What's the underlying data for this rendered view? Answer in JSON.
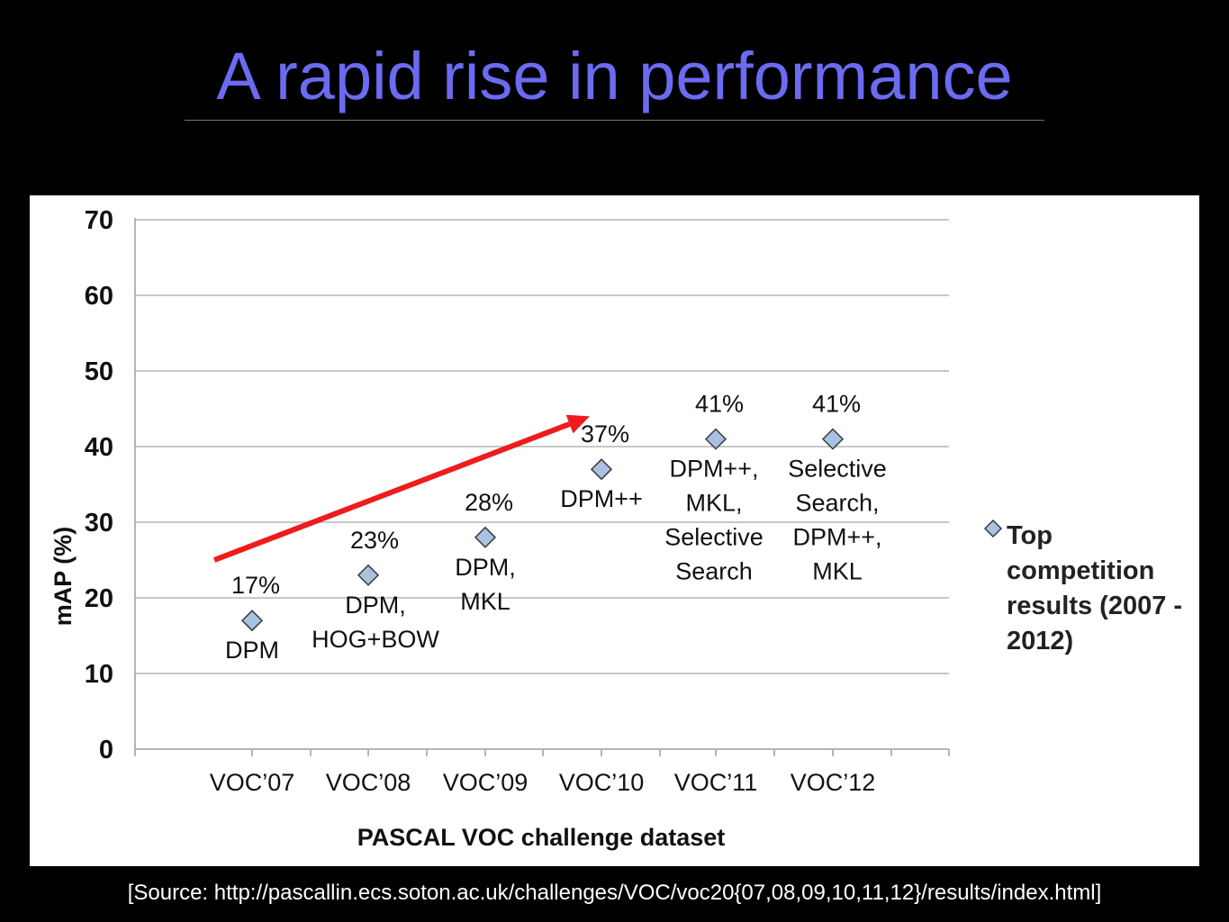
{
  "slide": {
    "title": "A rapid rise in performance",
    "source": "[Source: http://pascallin.ecs.soton.ac.uk/challenges/VOC/voc20{07,08,09,10,11,12}/results/index.html]"
  },
  "chart_data": {
    "type": "scatter",
    "xlabel": "PASCAL VOC challenge dataset",
    "ylabel": "mAP  (%)",
    "ylim": [
      0,
      70
    ],
    "yticks": [
      0,
      10,
      20,
      30,
      40,
      50,
      60,
      70
    ],
    "categories": [
      "VOC’07",
      "VOC’08",
      "VOC’09",
      "VOC’10",
      "VOC’11",
      "VOC’12"
    ],
    "grid": true,
    "legend_position": "right",
    "series": [
      {
        "name": "Top competition results (2007 - 2012)",
        "color": "#a9c1e3",
        "values": [
          17,
          23,
          28,
          37,
          41,
          41
        ]
      }
    ],
    "value_labels": [
      "17%",
      "23%",
      "28%",
      "37%",
      "41%",
      "41%"
    ],
    "method_labels": [
      [
        "DPM"
      ],
      [
        "DPM,",
        "HOG+BOW"
      ],
      [
        "DPM,",
        "MKL"
      ],
      [
        "DPM++"
      ],
      [
        "DPM++,",
        "MKL,",
        "Selective",
        "Search"
      ],
      [
        "Selective",
        "Search,",
        "DPM++,",
        "MKL"
      ]
    ],
    "trend_arrow": {
      "color": "#ee1c1c",
      "from_y": 25,
      "to_y": 44
    }
  }
}
